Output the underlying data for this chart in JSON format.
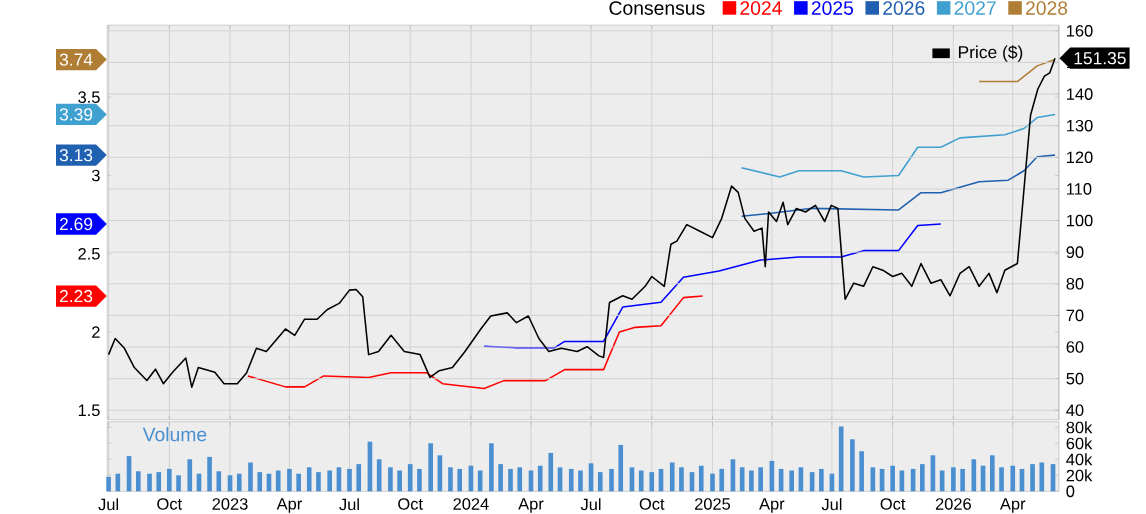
{
  "chart_data": [
    {
      "type": "line",
      "legend_title": "Consensus",
      "legend": "top",
      "grid": true,
      "tick_labels": "y",
      "annotations": [
        "2.23",
        "2.69",
        "3.13",
        "3.39",
        "3.74"
      ],
      "xlim": [
        "2022-06-29",
        "2026-06-10"
      ],
      "xticks": [
        {
          "value": "2022-07-01",
          "label": null
        },
        {
          "value": "2022-10-01",
          "label": null
        },
        {
          "value": "2023-01-01",
          "label": null
        },
        {
          "value": "2023-04-01",
          "label": null
        },
        {
          "value": "2023-07-01",
          "label": null
        },
        {
          "value": "2023-10-01",
          "label": null
        },
        {
          "value": "2024-01-01",
          "label": null
        },
        {
          "value": "2024-04-01",
          "label": null
        },
        {
          "value": "2024-07-01",
          "label": null
        },
        {
          "value": "2024-10-01",
          "label": null
        },
        {
          "value": "2025-01-01",
          "label": null
        },
        {
          "value": "2025-04-01",
          "label": null
        },
        {
          "value": "2025-07-01",
          "label": null
        },
        {
          "value": "2025-10-01",
          "label": null
        },
        {
          "value": "2026-01-01",
          "label": null
        },
        {
          "value": "2026-04-01",
          "label": null
        }
      ],
      "ylim": [
        1.44,
        3.96
      ],
      "yticks": [
        1.5,
        2,
        2.5,
        3,
        3.5
      ],
      "y2lim": [
        37,
        161.8
      ],
      "y2ticks": [
        40,
        50,
        60,
        70,
        80,
        90,
        100,
        110,
        120,
        130,
        140,
        150,
        160
      ],
      "series": [
        {
          "name": "2024",
          "color": "#ff0000",
          "x": [
            "2023-01-28",
            "2023-03-26",
            "2023-04-24",
            "2023-05-23",
            "2023-07-30",
            "2023-09-02",
            "2023-10-26",
            "2023-11-19",
            "2024-01-21",
            "2024-02-20",
            "2024-04-23",
            "2024-05-22",
            "2024-07-15",
            "2024-07-20",
            "2024-08-13",
            "2024-09-06",
            "2024-10-15",
            "2024-11-18",
            "2024-12-17"
          ],
          "values": [
            1.72,
            1.65,
            1.65,
            1.72,
            1.71,
            1.74,
            1.74,
            1.67,
            1.64,
            1.69,
            1.69,
            1.76,
            1.76,
            1.76,
            2.0,
            2.03,
            2.04,
            2.22,
            2.23
          ]
        },
        {
          "name": "2025",
          "color": "#0000ff",
          "x": [
            "2024-01-21",
            "2024-03-10",
            "2024-05-07",
            "2024-05-22",
            "2024-07-15",
            "2024-07-20",
            "2024-08-18",
            "2024-10-15",
            "2024-11-18",
            "2025-01-11",
            "2025-03-15",
            "2025-05-12",
            "2025-07-15",
            "2025-08-18",
            "2025-10-10",
            "2025-11-08",
            "2025-12-13"
          ],
          "values": [
            1.91,
            1.9,
            1.9,
            1.94,
            1.94,
            1.94,
            2.16,
            2.19,
            2.35,
            2.39,
            2.46,
            2.48,
            2.48,
            2.52,
            2.52,
            2.68,
            2.69
          ]
        },
        {
          "name": "2026",
          "color": "#2060b0",
          "x": [
            "2025-02-14",
            "2025-04-03",
            "2025-06-01",
            "2025-10-10",
            "2025-11-13",
            "2025-12-13",
            "2026-02-09",
            "2026-03-25",
            "2026-04-18",
            "2026-05-08",
            "2026-06-04"
          ],
          "values": [
            2.74,
            2.76,
            2.79,
            2.78,
            2.89,
            2.89,
            2.96,
            2.97,
            3.03,
            3.12,
            3.13
          ]
        },
        {
          "name": "2027",
          "color": "#40a0d0",
          "x": [
            "2025-02-14",
            "2025-04-13",
            "2025-05-12",
            "2025-07-15",
            "2025-08-18",
            "2025-10-10",
            "2025-11-08",
            "2025-12-13",
            "2026-01-11",
            "2026-03-20",
            "2026-04-18",
            "2026-05-08",
            "2026-06-04"
          ],
          "values": [
            3.05,
            2.99,
            3.03,
            3.03,
            2.99,
            3.0,
            3.18,
            3.18,
            3.24,
            3.26,
            3.3,
            3.37,
            3.39
          ]
        },
        {
          "name": "2028",
          "color": "#b07d35",
          "x": [
            "2026-02-09",
            "2026-04-08",
            "2026-05-08",
            "2026-06-04"
          ],
          "values": [
            3.6,
            3.6,
            3.7,
            3.74
          ]
        },
        {
          "name": "Price ($)",
          "color": "#000000",
          "axis": "y2",
          "x": [
            "2022-07-01",
            "2022-07-11",
            "2022-07-25",
            "2022-08-09",
            "2022-08-28",
            "2022-09-10",
            "2022-09-22",
            "2022-10-06",
            "2022-10-26",
            "2022-11-04",
            "2022-11-14",
            "2022-12-09",
            "2022-12-23",
            "2023-01-12",
            "2023-01-26",
            "2023-02-10",
            "2023-02-25",
            "2023-03-26",
            "2023-04-09",
            "2023-04-24",
            "2023-05-13",
            "2023-05-28",
            "2023-06-16",
            "2023-07-01",
            "2023-07-11",
            "2023-07-21",
            "2023-07-30",
            "2023-08-14",
            "2023-09-02",
            "2023-09-22",
            "2023-10-16",
            "2023-10-31",
            "2023-11-14",
            "2023-12-04",
            "2023-12-23",
            "2024-01-16",
            "2024-01-31",
            "2024-02-25",
            "2024-03-10",
            "2024-03-28",
            "2024-04-13",
            "2024-04-28",
            "2024-05-17",
            "2024-06-10",
            "2024-06-25",
            "2024-07-13",
            "2024-07-20",
            "2024-07-29",
            "2024-08-18",
            "2024-09-01",
            "2024-09-21",
            "2024-10-01",
            "2024-10-20",
            "2024-10-30",
            "2024-11-08",
            "2024-11-23",
            "2024-12-13",
            "2025-01-01",
            "2025-01-15",
            "2025-01-30",
            "2025-02-09",
            "2025-02-19",
            "2025-03-05",
            "2025-03-17",
            "2025-03-22",
            "2025-03-27",
            "2025-04-08",
            "2025-04-18",
            "2025-04-25",
            "2025-05-08",
            "2025-05-22",
            "2025-06-06",
            "2025-06-20",
            "2025-06-30",
            "2025-07-10",
            "2025-07-21",
            "2025-08-03",
            "2025-08-18",
            "2025-09-01",
            "2025-09-16",
            "2025-10-01",
            "2025-10-15",
            "2025-10-30",
            "2025-11-13",
            "2025-11-28",
            "2025-12-13",
            "2025-12-27",
            "2026-01-11",
            "2026-01-25",
            "2026-02-09",
            "2026-02-24",
            "2026-03-08",
            "2026-03-20",
            "2026-04-08",
            "2026-04-28",
            "2026-05-09",
            "2026-05-19",
            "2026-05-27",
            "2026-06-04"
          ],
          "values": [
            57.6,
            62.7,
            59.6,
            53.5,
            49.4,
            53,
            48.4,
            52,
            56.5,
            47.3,
            53.5,
            52,
            48.4,
            48.4,
            51.8,
            59.6,
            58.6,
            65.7,
            63.7,
            68.8,
            68.8,
            71.8,
            73.9,
            78,
            78.2,
            75.9,
            57.6,
            58.6,
            63.7,
            58.6,
            57.6,
            50.4,
            52.5,
            53.5,
            58.6,
            65.7,
            69.8,
            70.8,
            67.7,
            69.8,
            62.7,
            58.6,
            59.6,
            58.6,
            60.1,
            57.2,
            56.7,
            74.1,
            76.2,
            75.1,
            79.2,
            82.3,
            79.2,
            92.5,
            93.5,
            98.7,
            96.6,
            94.6,
            100.7,
            110.9,
            108.9,
            100.7,
            96.6,
            97.6,
            85.4,
            102.7,
            99.7,
            105.8,
            98.7,
            103.8,
            102.7,
            104.8,
            99.7,
            104.8,
            103.8,
            75.1,
            80.2,
            79.2,
            85.4,
            84.3,
            82.3,
            83.3,
            79.2,
            86.4,
            80.2,
            81.3,
            76.2,
            83.3,
            85.4,
            79.2,
            83.3,
            77.2,
            84.3,
            86.4,
            133.4,
            141.6,
            145.7,
            146.7,
            151.35
          ],
          "value_labels": [
            null,
            null,
            null,
            null,
            null,
            null,
            null,
            null,
            null,
            null,
            null,
            null,
            null,
            null,
            null,
            null,
            null,
            null,
            null,
            null,
            null,
            null,
            null,
            null,
            null,
            null,
            null,
            null,
            null,
            null,
            null,
            null,
            null,
            null,
            null,
            null,
            null,
            null,
            null,
            null,
            null,
            null,
            null,
            null,
            null,
            null,
            null,
            null,
            null,
            null,
            null,
            null,
            null,
            null,
            null,
            null,
            null,
            null,
            null,
            null,
            null,
            null,
            null,
            null,
            null,
            null,
            null,
            null,
            null,
            null,
            null,
            null,
            null,
            null,
            null,
            null,
            null,
            null,
            null,
            null,
            null,
            null,
            null,
            null,
            null,
            null,
            null,
            null,
            null,
            null,
            null,
            null,
            null,
            null,
            null,
            null,
            null,
            null,
            "151.35"
          ]
        }
      ]
    },
    {
      "type": "bar",
      "grid": "x",
      "xlim": [
        "2022-06-29",
        "2026-06-10"
      ],
      "xticks": [
        {
          "value": "2022-07-01",
          "label": "Jul"
        },
        {
          "value": "2022-10-01",
          "label": "Oct"
        },
        {
          "value": "2023-01-01",
          "label": "2023"
        },
        {
          "value": "2023-04-01",
          "label": "Apr"
        },
        {
          "value": "2023-07-01",
          "label": "Jul"
        },
        {
          "value": "2023-10-01",
          "label": "Oct"
        },
        {
          "value": "2024-01-01",
          "label": "2024"
        },
        {
          "value": "2024-04-01",
          "label": "Apr"
        },
        {
          "value": "2024-07-01",
          "label": "Jul"
        },
        {
          "value": "2024-10-01",
          "label": "Oct"
        },
        {
          "value": "2025-01-01",
          "label": "2025"
        },
        {
          "value": "2025-04-01",
          "label": "Apr"
        },
        {
          "value": "2025-07-01",
          "label": "Jul"
        },
        {
          "value": "2025-10-01",
          "label": "Oct"
        },
        {
          "value": "2026-01-01",
          "label": "2026"
        },
        {
          "value": "2026-04-01",
          "label": "Apr"
        }
      ],
      "ylim": [
        0,
        87000
      ],
      "yticks": [
        0,
        {
          "value": 20000,
          "label": "20k"
        },
        {
          "value": 40000,
          "label": "40k"
        },
        {
          "value": 60000,
          "label": "60k"
        },
        {
          "value": 80000,
          "label": "80k"
        }
      ],
      "series": [
        {
          "name": "Volume",
          "color": "#4a8fd0",
          "x": [
            "2022-07-01",
            "2022-07-15",
            "2022-08-01",
            "2022-08-15",
            "2022-09-01",
            "2022-09-15",
            "2022-10-01",
            "2022-10-15",
            "2022-11-01",
            "2022-11-15",
            "2022-12-01",
            "2022-12-15",
            "2023-01-01",
            "2023-01-15",
            "2023-02-01",
            "2023-02-15",
            "2023-03-01",
            "2023-03-15",
            "2023-04-01",
            "2023-04-15",
            "2023-05-01",
            "2023-05-15",
            "2023-06-01",
            "2023-06-15",
            "2023-07-01",
            "2023-07-15",
            "2023-08-01",
            "2023-08-15",
            "2023-09-01",
            "2023-09-15",
            "2023-10-01",
            "2023-10-15",
            "2023-11-01",
            "2023-11-15",
            "2023-12-01",
            "2023-12-15",
            "2024-01-01",
            "2024-01-15",
            "2024-02-01",
            "2024-02-15",
            "2024-03-01",
            "2024-03-15",
            "2024-04-01",
            "2024-04-15",
            "2024-05-01",
            "2024-05-15",
            "2024-06-01",
            "2024-06-15",
            "2024-07-01",
            "2024-07-15",
            "2024-08-01",
            "2024-08-15",
            "2024-09-01",
            "2024-09-15",
            "2024-10-01",
            "2024-10-15",
            "2024-11-01",
            "2024-11-15",
            "2024-12-01",
            "2024-12-15",
            "2025-01-01",
            "2025-01-15",
            "2025-02-01",
            "2025-02-15",
            "2025-03-01",
            "2025-03-15",
            "2025-04-01",
            "2025-04-15",
            "2025-05-01",
            "2025-05-15",
            "2025-06-01",
            "2025-06-15",
            "2025-07-01",
            "2025-07-15",
            "2025-08-01",
            "2025-08-15",
            "2025-09-01",
            "2025-09-15",
            "2025-10-01",
            "2025-10-15",
            "2025-11-01",
            "2025-11-15",
            "2025-12-01",
            "2025-12-15",
            "2026-01-01",
            "2026-01-15",
            "2026-02-01",
            "2026-02-15",
            "2026-03-01",
            "2026-03-15",
            "2026-04-01",
            "2026-04-15",
            "2026-05-01",
            "2026-05-15",
            "2026-06-01"
          ],
          "values": [
            18000,
            22000,
            44000,
            25000,
            22000,
            24000,
            28000,
            20000,
            40000,
            22000,
            43000,
            25000,
            20000,
            22000,
            36000,
            24000,
            22000,
            26000,
            28000,
            22000,
            30000,
            24000,
            26000,
            30000,
            28000,
            34000,
            62000,
            40000,
            30000,
            26000,
            34000,
            28000,
            60000,
            45000,
            30000,
            28000,
            32000,
            26000,
            60000,
            34000,
            28000,
            30000,
            26000,
            32000,
            48000,
            30000,
            28000,
            26000,
            35000,
            24000,
            28000,
            58000,
            30000,
            26000,
            24000,
            28000,
            36000,
            30000,
            24000,
            32000,
            22000,
            28000,
            40000,
            30000,
            26000,
            30000,
            38000,
            28000,
            26000,
            30000,
            24000,
            28000,
            22000,
            81000,
            65000,
            50000,
            30000,
            28000,
            32000,
            26000,
            28000,
            34000,
            45000,
            26000,
            30000,
            28000,
            40000,
            32000,
            45000,
            30000,
            32000,
            28000,
            34000,
            36000,
            34000
          ]
        }
      ]
    }
  ]
}
